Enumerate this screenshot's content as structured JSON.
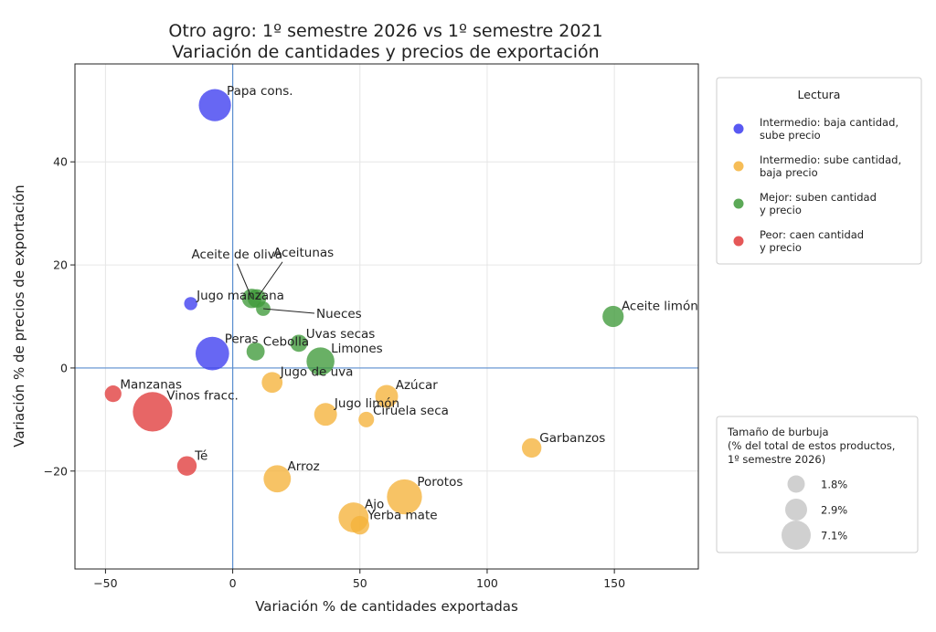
{
  "chart_data": {
    "type": "scatter",
    "title": [
      "Otro agro: 1º semestre 2026 vs 1º semestre 2021",
      "Variación de cantidades y precios de exportación"
    ],
    "xlabel": "Variación % de cantidades exportadas",
    "ylabel": "Variación % de precios de exportación",
    "xlim": [
      -62,
      183
    ],
    "ylim": [
      -39,
      59
    ],
    "xticks": [
      -50,
      0,
      50,
      100,
      150
    ],
    "yticks": [
      -20,
      0,
      20,
      40
    ],
    "grid": true,
    "colors": {
      "intermedio_precio": "#3c3cf0",
      "intermedio_cantidad": "#f5b23a",
      "mejor": "#3f9a3a",
      "peor": "#e03b3b",
      "reference_line": "#5b8fd0"
    },
    "points": [
      {
        "label": "Papa cons.",
        "x": -7,
        "y": 51,
        "size": 6.0,
        "group": "intermedio_precio"
      },
      {
        "label": "Jugo manzana",
        "x": -16.5,
        "y": 12.5,
        "size": 1.0,
        "group": "intermedio_precio"
      },
      {
        "label": "Peras",
        "x": -8,
        "y": 2.8,
        "size": 6.5,
        "group": "intermedio_precio"
      },
      {
        "label": "Aceite de oliva",
        "x": 7.5,
        "y": 13.5,
        "size": 2.2,
        "group": "mejor"
      },
      {
        "label": "Aceitunas",
        "x": 9.5,
        "y": 13.5,
        "size": 2.0,
        "group": "mejor"
      },
      {
        "label": "Nueces",
        "x": 12,
        "y": 11.5,
        "size": 1.2,
        "group": "mejor"
      },
      {
        "label": "Cebolla",
        "x": 9,
        "y": 3.2,
        "size": 1.9,
        "group": "mejor"
      },
      {
        "label": "Uvas secas",
        "x": 26,
        "y": 4.8,
        "size": 1.7,
        "group": "mejor"
      },
      {
        "label": "Limones",
        "x": 34.5,
        "y": 1.3,
        "size": 4.5,
        "group": "mejor"
      },
      {
        "label": "Aceite limón",
        "x": 149.5,
        "y": 10,
        "size": 2.6,
        "group": "mejor"
      },
      {
        "label": "Jugo de uva",
        "x": 15.5,
        "y": -2.8,
        "size": 2.5,
        "group": "intermedio_cantidad"
      },
      {
        "label": "Azúcar",
        "x": 60.5,
        "y": -5.5,
        "size": 3.0,
        "group": "intermedio_cantidad"
      },
      {
        "label": "Jugo limón",
        "x": 36.5,
        "y": -9,
        "size": 3.0,
        "group": "intermedio_cantidad"
      },
      {
        "label": "Ciruela seca",
        "x": 52.5,
        "y": -10,
        "size": 1.4,
        "group": "intermedio_cantidad"
      },
      {
        "label": "Garbanzos",
        "x": 117.5,
        "y": -15.5,
        "size": 2.2,
        "group": "intermedio_cantidad"
      },
      {
        "label": "Arroz",
        "x": 17.5,
        "y": -21.5,
        "size": 4.3,
        "group": "intermedio_cantidad"
      },
      {
        "label": "Porotos",
        "x": 67.5,
        "y": -25,
        "size": 7.1,
        "group": "intermedio_cantidad"
      },
      {
        "label": "Ajo",
        "x": 47.5,
        "y": -29,
        "size": 5.2,
        "group": "intermedio_cantidad"
      },
      {
        "label": "Yerba mate",
        "x": 50,
        "y": -30.5,
        "size": 2.0,
        "group": "intermedio_cantidad"
      },
      {
        "label": "Manzanas",
        "x": -47,
        "y": -5,
        "size": 1.6,
        "group": "peor"
      },
      {
        "label": "Vinos fracc.",
        "x": -31.5,
        "y": -8.5,
        "size": 9.0,
        "group": "peor"
      },
      {
        "label": "Té",
        "x": -18,
        "y": -19,
        "size": 2.2,
        "group": "peor"
      }
    ],
    "legend": {
      "title": "Lectura",
      "placement": "right-top",
      "items": [
        {
          "group": "intermedio_precio",
          "lines": [
            "Intermedio: baja cantidad,",
            "sube precio"
          ]
        },
        {
          "group": "intermedio_cantidad",
          "lines": [
            "Intermedio: sube cantidad,",
            "baja precio"
          ]
        },
        {
          "group": "mejor",
          "lines": [
            "Mejor: suben cantidad",
            "y precio"
          ]
        },
        {
          "group": "peor",
          "lines": [
            "Peor: caen cantidad",
            "y precio"
          ]
        }
      ]
    },
    "size_legend": {
      "title": [
        "Tamaño de burbuja",
        "(% del total de estos productos,",
        "1º semestre 2026)"
      ],
      "placement": "right-bottom",
      "items": [
        {
          "label": "1.8%",
          "size": 1.8
        },
        {
          "label": "2.9%",
          "size": 2.9
        },
        {
          "label": "7.1%",
          "size": 7.1
        }
      ]
    }
  }
}
